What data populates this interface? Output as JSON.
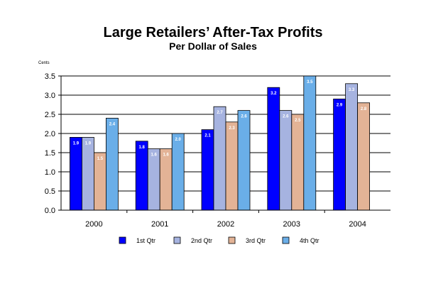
{
  "chart_data": {
    "type": "bar",
    "title": "Large Retailers’ After-Tax Profits",
    "subtitle": "Per Dollar of Sales",
    "ylabel": "Cents",
    "xlabel": "",
    "categories": [
      "2000",
      "2001",
      "2002",
      "2003",
      "2004"
    ],
    "ylim": [
      0,
      3.5
    ],
    "yticks": [
      "0.0",
      "0.5",
      "1.0",
      "1.5",
      "2.0",
      "2.5",
      "3.0",
      "3.5"
    ],
    "grid": true,
    "legend_position": "bottom",
    "series": [
      {
        "name": "1st Qtr",
        "color": "#0000ff",
        "values": [
          1.9,
          1.8,
          2.1,
          3.2,
          2.9
        ],
        "labels": [
          "1.9",
          "1.8",
          "2.1",
          "3.2",
          "2.9"
        ]
      },
      {
        "name": "2nd Qtr",
        "color": "#a6b3e0",
        "values": [
          1.9,
          1.6,
          2.7,
          2.6,
          3.3
        ],
        "labels": [
          "1.9",
          "1.6",
          "2.7",
          "2.6",
          "3.3"
        ]
      },
      {
        "name": "3rd Qtr",
        "color": "#e3b396",
        "values": [
          1.5,
          1.6,
          2.3,
          2.5,
          2.8
        ],
        "labels": [
          "1.5",
          "1.6",
          "2.3",
          "2.5",
          "2.8"
        ]
      },
      {
        "name": "4th Qtr",
        "color": "#6aaee8",
        "values": [
          2.4,
          2.0,
          2.6,
          3.5,
          null
        ],
        "labels": [
          "2.4",
          "2.0",
          "2.6",
          "3.5",
          ""
        ]
      }
    ]
  }
}
